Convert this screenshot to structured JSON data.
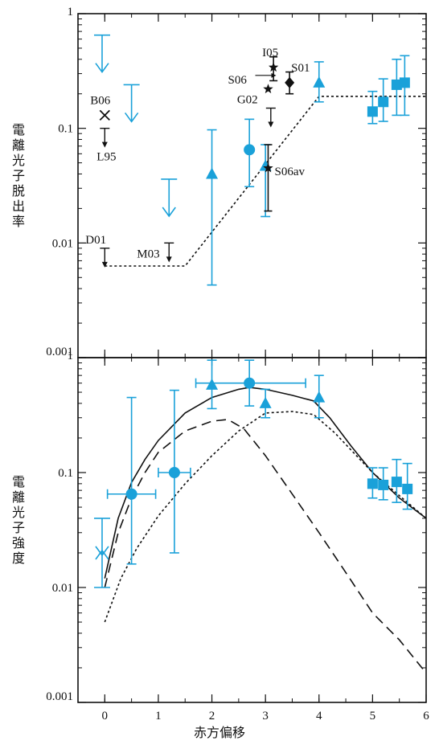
{
  "colors": {
    "cyan": "#1aa1d9",
    "black": "#111111"
  },
  "xaxis": {
    "label": "赤方偏移",
    "range": [
      -0.5,
      6
    ],
    "ticks": [
      0,
      1,
      2,
      3,
      4,
      5,
      6
    ],
    "tick_labels": [
      "0",
      "1",
      "2",
      "3",
      "4",
      "5",
      "6"
    ]
  },
  "chart_data": [
    {
      "type": "scatter",
      "panel": "top",
      "ylabel": "電離光子脱出率",
      "yscale": "log",
      "ylim": [
        0.001,
        1
      ],
      "yticks": [
        0.001,
        0.01,
        0.1,
        1
      ],
      "ytick_labels": [
        "0.001",
        "0.01",
        "0.1",
        "1"
      ],
      "cyan_upper_limits": [
        {
          "x": -0.05,
          "y": 0.65
        },
        {
          "x": 0.5,
          "y": 0.24
        },
        {
          "x": 1.2,
          "y": 0.036
        }
      ],
      "cyan_triangles": [
        {
          "x": 2.0,
          "y": 0.04,
          "ylo": 0.0043,
          "yhi": 0.097
        },
        {
          "x": 3.0,
          "y": 0.047,
          "ylo": 0.017,
          "yhi": 0.072
        },
        {
          "x": 4.0,
          "y": 0.25,
          "ylo": 0.17,
          "yhi": 0.38
        }
      ],
      "cyan_circles": [
        {
          "x": 2.7,
          "y": 0.065,
          "ylo": 0.031,
          "yhi": 0.12
        }
      ],
      "cyan_squares": [
        {
          "x": 5.0,
          "y": 0.14,
          "ylo": 0.11,
          "yhi": 0.21
        },
        {
          "x": 5.2,
          "y": 0.17,
          "ylo": 0.115,
          "yhi": 0.27
        },
        {
          "x": 5.45,
          "y": 0.24,
          "ylo": 0.13,
          "yhi": 0.4
        },
        {
          "x": 5.6,
          "y": 0.25,
          "ylo": 0.13,
          "yhi": 0.43
        }
      ],
      "black_limits": [
        {
          "label": "D01",
          "x": 0.0,
          "y": 0.009,
          "type": "upper"
        },
        {
          "label": "L95",
          "x": 0.0,
          "y": 0.1,
          "type": "upper"
        },
        {
          "label": "M03",
          "x": 1.2,
          "y": 0.01,
          "type": "upper"
        },
        {
          "label": "G02",
          "x": 3.1,
          "y": 0.15,
          "type": "upper"
        }
      ],
      "black_markers": [
        {
          "label": "B06",
          "x": 0.0,
          "y": 0.13,
          "marker": "x"
        },
        {
          "label": "S06",
          "x": 3.05,
          "y": 0.22,
          "marker": "star"
        },
        {
          "label": "I05",
          "x": 3.15,
          "y": 0.34,
          "marker": "star",
          "ylo": 0.26,
          "yhi": 0.42
        },
        {
          "label": "S06av",
          "x": 3.05,
          "y": 0.045,
          "marker": "star",
          "ylo": 0.019,
          "yhi": 0.072
        },
        {
          "label": "S01",
          "x": 3.45,
          "y": 0.25,
          "marker": "diamond",
          "ylo": 0.2,
          "yhi": 0.31
        }
      ],
      "model_dotted": {
        "x": [
          0,
          1.5,
          4,
          6
        ],
        "y": [
          0.0063,
          0.0063,
          0.19,
          0.19
        ]
      }
    },
    {
      "type": "line",
      "panel": "bottom",
      "ylabel": "電離光子強度",
      "yscale": "log",
      "ylim": [
        0.001,
        1
      ],
      "yticks": [
        0.001,
        0.01,
        0.1,
        1
      ],
      "ytick_labels": [
        "0.001",
        "0.01",
        "0.1",
        "1"
      ],
      "model_solid": {
        "x": [
          0.0,
          0.25,
          0.5,
          0.75,
          1.0,
          1.5,
          2.0,
          2.5,
          2.7,
          3.0,
          3.5,
          3.9,
          4.2,
          4.6,
          5.0,
          5.5,
          6.0
        ],
        "y": [
          0.012,
          0.04,
          0.082,
          0.13,
          0.19,
          0.33,
          0.45,
          0.53,
          0.55,
          0.53,
          0.47,
          0.42,
          0.3,
          0.17,
          0.1,
          0.06,
          0.04
        ]
      },
      "model_dashed": {
        "x": [
          0.0,
          0.25,
          0.5,
          0.75,
          1.0,
          1.5,
          2.0,
          2.3,
          2.6,
          3.0,
          3.5,
          4.0,
          4.5,
          5.0,
          5.5,
          6.0
        ],
        "y": [
          0.01,
          0.03,
          0.06,
          0.1,
          0.15,
          0.23,
          0.28,
          0.29,
          0.24,
          0.14,
          0.065,
          0.03,
          0.0135,
          0.006,
          0.0035,
          0.0018
        ]
      },
      "model_dotted": {
        "x": [
          0.0,
          0.3,
          0.6,
          1.0,
          1.5,
          2.0,
          2.5,
          3.0,
          3.5,
          3.9,
          4.3,
          4.7,
          5.0,
          5.5,
          6.0
        ],
        "y": [
          0.005,
          0.012,
          0.022,
          0.042,
          0.08,
          0.14,
          0.23,
          0.33,
          0.34,
          0.32,
          0.22,
          0.14,
          0.1,
          0.063,
          0.04
        ]
      },
      "cyan_upper_limits": [
        {
          "x": -0.05,
          "y": 0.04
        }
      ],
      "cyan_lower_limits": [
        {
          "x": -0.05,
          "y": 0.01
        }
      ],
      "cyan_circles": [
        {
          "x": 0.5,
          "y": 0.065,
          "ylo": 0.016,
          "yhi": 0.45,
          "xlo": 0.05,
          "xhi": 0.95
        },
        {
          "x": 1.3,
          "y": 0.1,
          "ylo": 0.02,
          "yhi": 0.52,
          "xlo": 1.0,
          "xhi": 1.6
        },
        {
          "x": 2.7,
          "y": 0.6,
          "ylo": 0.38,
          "yhi": 0.95,
          "xlo": 1.7,
          "xhi": 3.75
        }
      ],
      "cyan_triangles": [
        {
          "x": 2.0,
          "y": 0.58,
          "ylo": 0.36,
          "yhi": 0.95
        },
        {
          "x": 3.0,
          "y": 0.4,
          "ylo": 0.3,
          "yhi": 0.53
        },
        {
          "x": 4.0,
          "y": 0.45,
          "ylo": 0.3,
          "yhi": 0.7
        }
      ],
      "cyan_squares": [
        {
          "x": 5.0,
          "y": 0.08,
          "ylo": 0.06,
          "yhi": 0.11
        },
        {
          "x": 5.2,
          "y": 0.078,
          "ylo": 0.058,
          "yhi": 0.11
        },
        {
          "x": 5.45,
          "y": 0.083,
          "ylo": 0.055,
          "yhi": 0.13
        },
        {
          "x": 5.65,
          "y": 0.072,
          "ylo": 0.048,
          "yhi": 0.12
        }
      ]
    }
  ]
}
